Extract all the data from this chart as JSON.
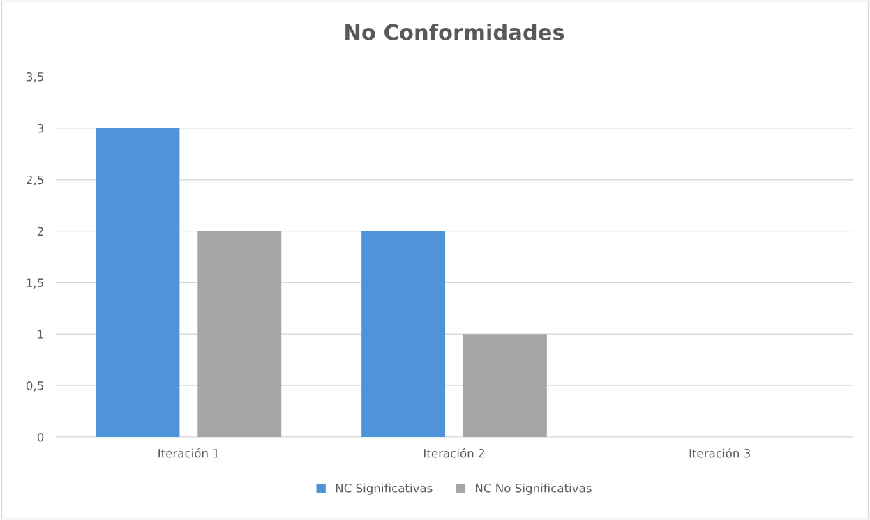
{
  "chart_data": {
    "type": "bar",
    "title": "No Conformidades",
    "categories": [
      "Iteración 1",
      "Iteración 2",
      "Iteración 3"
    ],
    "series": [
      {
        "name": "NC Significativas",
        "color": "#4f94d8",
        "values": [
          3,
          2,
          0
        ]
      },
      {
        "name": "NC No Significativas",
        "color": "#a5a5a5",
        "values": [
          2,
          1,
          0
        ]
      }
    ],
    "ylim": [
      0,
      3.5
    ],
    "yticks": [
      0,
      {
        "value": 0.5,
        "label": "0,5"
      },
      1,
      {
        "value": 1.5,
        "label": "1,5"
      },
      2,
      {
        "value": 2.5,
        "label": "2,5"
      },
      3,
      {
        "value": 3.5,
        "label": "3,5"
      }
    ],
    "grid": "y",
    "legend": "bottom"
  }
}
